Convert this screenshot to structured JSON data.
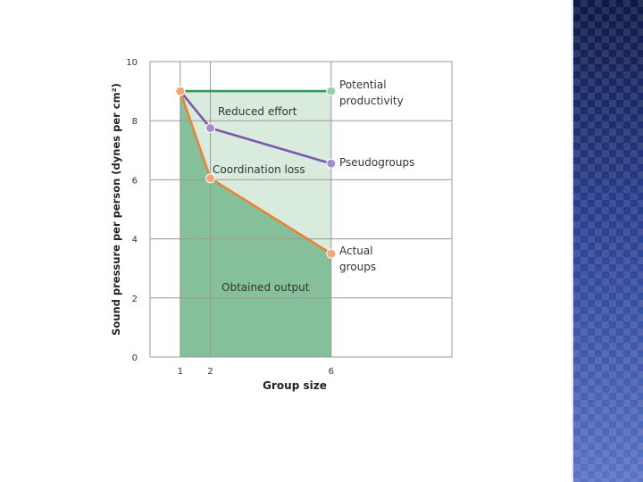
{
  "colors": {
    "side_panel": "#2c3f8a",
    "obtained_fill": "#86c09a",
    "loss_fill": "#d9ebdc",
    "potential_line": "#2e9e5a",
    "pseudo_line": "#7a5aa8",
    "actual_line": "#e8843a",
    "grid": "#999999"
  },
  "chart_data": {
    "type": "line",
    "xlabel": "Group size",
    "ylabel": "Sound pressure per person (dynes per cm²)",
    "ylim": [
      0,
      10
    ],
    "xlim": [
      0,
      10
    ],
    "x_ticks": [
      1,
      2,
      6
    ],
    "y_ticks": [
      0,
      2,
      4,
      6,
      8,
      10
    ],
    "grid": true,
    "series": [
      {
        "name": "Potential productivity",
        "label_lines": [
          "Potential",
          "productivity"
        ],
        "x": [
          1,
          6
        ],
        "y": [
          9,
          9
        ]
      },
      {
        "name": "Pseudogroups",
        "label_lines": [
          "Pseudogroups"
        ],
        "x": [
          1,
          2,
          6
        ],
        "y": [
          9,
          7.75,
          6.55
        ]
      },
      {
        "name": "Actual groups",
        "label_lines": [
          "Actual",
          "groups"
        ],
        "x": [
          1,
          2,
          6
        ],
        "y": [
          9,
          6.05,
          3.5
        ]
      }
    ],
    "regions": [
      {
        "label": "Reduced effort"
      },
      {
        "label": "Coordination loss"
      },
      {
        "label": "Obtained output"
      }
    ]
  }
}
